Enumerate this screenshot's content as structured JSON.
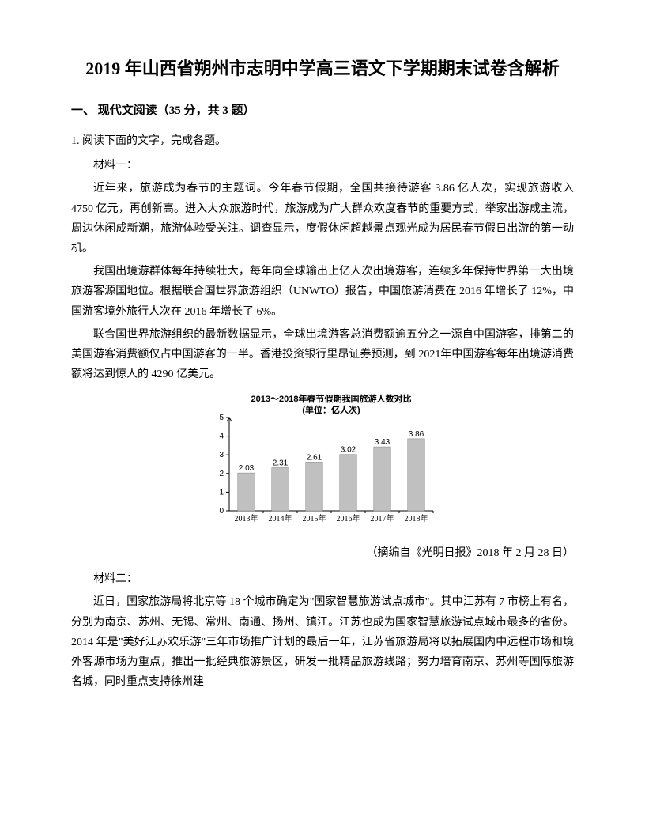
{
  "title": "2019 年山西省朔州市志明中学高三语文下学期期末试卷含解析",
  "section_header": "一、 现代文阅读（35 分，共 3 题）",
  "question": "1. 阅读下面的文字，完成各题。",
  "material1_label": "材料一：",
  "para1": "近年来，旅游成为春节的主题词。今年春节假期，全国共接待游客 3.86 亿人次，实现旅游收入 4750 亿元，再创新高。进入大众旅游时代，旅游成为广大群众欢度春节的重要方式，举家出游成主流，周边休闲成新潮，旅游体验受关注。调查显示，度假休闲超越景点观光成为居民春节假日出游的第一动机。",
  "para2": "我国出境游群体每年持续壮大，每年向全球输出上亿人次出境游客，连续多年保持世界第一大出境旅游客源国地位。根据联合国世界旅游组织（UNWTO）报告，中国旅游消费在 2016 年增长了 12%，中国游客境外旅行人次在 2016 年增长了 6%。",
  "para3": "联合国世界旅游组织的最新数据显示，全球出境游客总消费额逾五分之一源自中国游客，排第二的美国游客消费额仅占中国游客的一半。香港投资银行里昂证券预测，到 2021年中国游客每年出境游消费额将达到惊人的 4290 亿美元。",
  "chart": {
    "type": "bar",
    "title_line1": "2013～2018年春节假期我国旅游人数对比",
    "title_line2": "(单位：亿人次)",
    "categories": [
      "2013年",
      "2014年",
      "2015年",
      "2016年",
      "2017年",
      "2018年"
    ],
    "values": [
      2.03,
      2.31,
      2.61,
      3.02,
      3.43,
      3.86
    ],
    "ylim": [
      0,
      5
    ],
    "ytick_step": 1,
    "bar_color": "#c0c0c0",
    "bar_border_color": "#808080",
    "background_color": "#ffffff",
    "axis_color": "#000000",
    "bar_width_ratio": 0.5,
    "title_fontsize": 11,
    "label_fontsize": 10
  },
  "source": "（摘编自《光明日报》2018 年 2 月 28 日）",
  "material2_label": "材料二：",
  "para4": "近日，国家旅游局将北京等 18 个城市确定为\"国家智慧旅游试点城市\"。其中江苏有 7 市榜上有名，分别为南京、苏州、无锡、常州、南通、扬州、镇江。江苏也成为国家智慧旅游试点城市最多的省份。2014 年是\"美好江苏欢乐游\"三年市场推广计划的最后一年，江苏省旅游局将以拓展国内中远程市场和境外客源市场为重点，推出一批经典旅游景区，研发一批精品旅游线路；努力培育南京、苏州等国际旅游名城，同时重点支持徐州建"
}
